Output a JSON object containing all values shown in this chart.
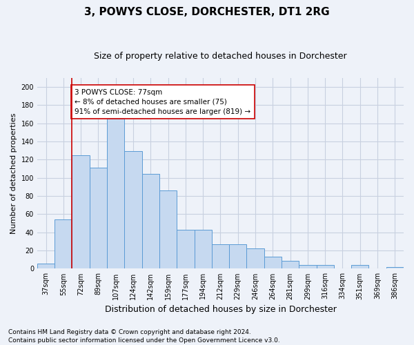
{
  "title": "3, POWYS CLOSE, DORCHESTER, DT1 2RG",
  "subtitle": "Size of property relative to detached houses in Dorchester",
  "xlabel": "Distribution of detached houses by size in Dorchester",
  "ylabel": "Number of detached properties",
  "bar_labels": [
    "37sqm",
    "55sqm",
    "72sqm",
    "89sqm",
    "107sqm",
    "124sqm",
    "142sqm",
    "159sqm",
    "177sqm",
    "194sqm",
    "212sqm",
    "229sqm",
    "246sqm",
    "264sqm",
    "281sqm",
    "299sqm",
    "316sqm",
    "334sqm",
    "351sqm",
    "369sqm",
    "386sqm"
  ],
  "bar_values": [
    6,
    54,
    125,
    111,
    165,
    129,
    104,
    86,
    43,
    43,
    27,
    27,
    22,
    13,
    9,
    4,
    4,
    0,
    4,
    0,
    2
  ],
  "bar_color": "#c6d9f0",
  "bar_edgecolor": "#5b9bd5",
  "ylim": [
    0,
    210
  ],
  "yticks": [
    0,
    20,
    40,
    60,
    80,
    100,
    120,
    140,
    160,
    180,
    200
  ],
  "vline_index": 2,
  "annotation_text": "3 POWYS CLOSE: 77sqm\n← 8% of detached houses are smaller (75)\n91% of semi-detached houses are larger (819) →",
  "annotation_box_color": "#ffffff",
  "annotation_box_edgecolor": "#cc0000",
  "vline_color": "#cc0000",
  "footer_line1": "Contains HM Land Registry data © Crown copyright and database right 2024.",
  "footer_line2": "Contains public sector information licensed under the Open Government Licence v3.0.",
  "background_color": "#eef2f9",
  "grid_color": "#c8d0e0",
  "title_fontsize": 11,
  "subtitle_fontsize": 9,
  "ylabel_fontsize": 8,
  "xlabel_fontsize": 9,
  "tick_fontsize": 7,
  "annotation_fontsize": 7.5,
  "footer_fontsize": 6.5
}
